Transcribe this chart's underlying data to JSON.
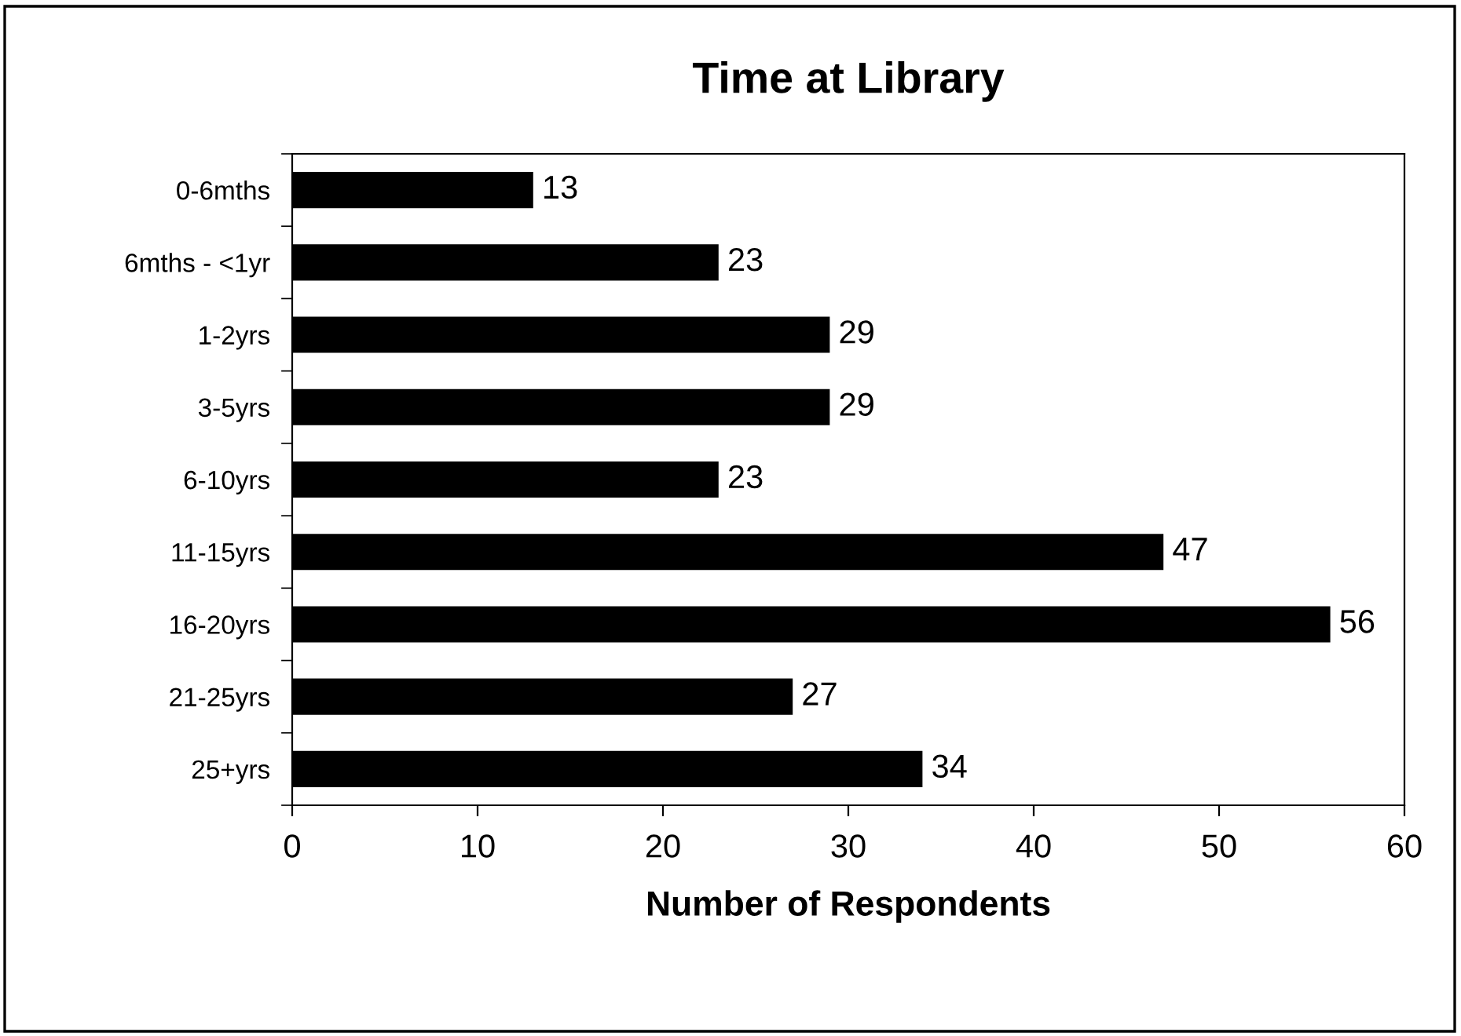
{
  "chart_data": {
    "type": "bar",
    "orientation": "horizontal",
    "title": "Time at Library",
    "xlabel": "Number of Respondents",
    "categories": [
      "0-6mths",
      "6mths - <1yr",
      "1-2yrs",
      "3-5yrs",
      "6-10yrs",
      "11-15yrs",
      "16-20yrs",
      "21-25yrs",
      "25+yrs"
    ],
    "values": [
      13,
      23,
      29,
      29,
      23,
      47,
      56,
      27,
      34
    ],
    "color": "#000000",
    "data_labels": true,
    "grid": false,
    "legend": false,
    "xlim": [
      0,
      60
    ],
    "xticks": [
      0,
      10,
      20,
      30,
      40,
      50,
      60
    ]
  }
}
